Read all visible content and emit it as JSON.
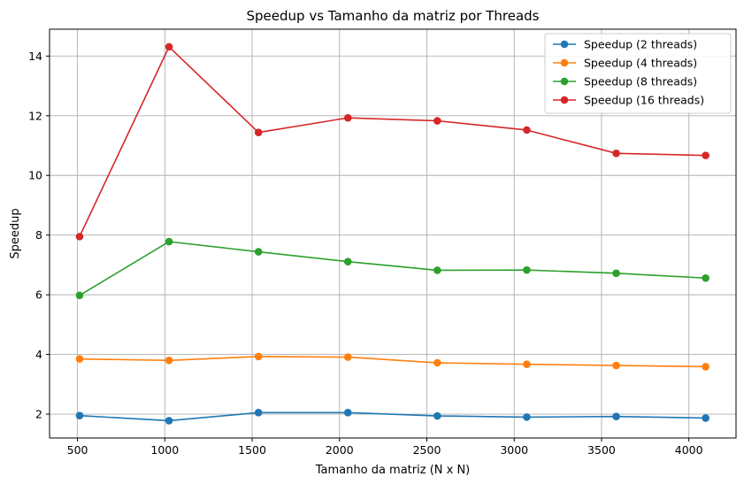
{
  "chart_data": {
    "type": "line",
    "title": "Speedup vs Tamanho da matriz por Threads",
    "xlabel": "Tamanho da matriz (N x N)",
    "ylabel": "Speedup",
    "x": [
      512,
      1024,
      1536,
      2048,
      2560,
      3072,
      3584,
      4096
    ],
    "xlim": [
      340,
      4270
    ],
    "ylim": [
      1.2,
      14.9
    ],
    "xticks": [
      500,
      1000,
      1500,
      2000,
      2500,
      3000,
      3500,
      4000
    ],
    "yticks": [
      2,
      4,
      6,
      8,
      10,
      12,
      14
    ],
    "grid": true,
    "legend_position": "top-right",
    "series": [
      {
        "name": "Speedup (2 threads)",
        "color": "#1f77b4",
        "values": [
          1.95,
          1.78,
          2.05,
          2.05,
          1.94,
          1.9,
          1.92,
          1.87
        ]
      },
      {
        "name": "Speedup (4 threads)",
        "color": "#ff7f0e",
        "values": [
          3.85,
          3.8,
          3.93,
          3.91,
          3.72,
          3.67,
          3.63,
          3.59
        ]
      },
      {
        "name": "Speedup (8 threads)",
        "color": "#2ca02c",
        "values": [
          5.98,
          7.78,
          7.44,
          7.11,
          6.82,
          6.83,
          6.72,
          6.56
        ]
      },
      {
        "name": "Speedup (16 threads)",
        "color": "#d62728",
        "values": [
          7.95,
          14.31,
          11.44,
          11.93,
          11.83,
          11.52,
          10.74,
          10.67
        ]
      }
    ]
  }
}
